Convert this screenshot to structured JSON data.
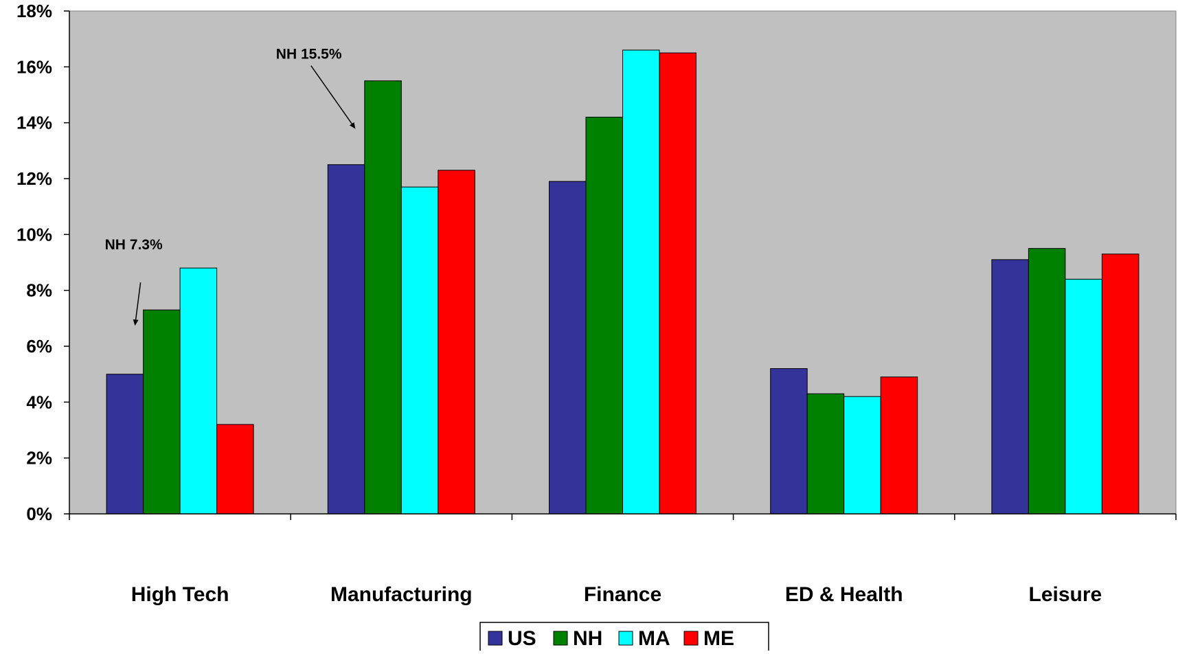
{
  "chart_data": {
    "type": "bar",
    "title": "",
    "xlabel": "",
    "ylabel": "",
    "ylim": [
      0,
      18
    ],
    "ytick_step": 2,
    "ytick_suffix": "%",
    "grid": false,
    "plot_background": "#C0C0C0",
    "legend_placement": "bottom-center",
    "categories": [
      "High Tech",
      "Manufacturing",
      "Finance",
      "ED & Health",
      "Leisure"
    ],
    "series": [
      {
        "name": "US",
        "color": "#333399",
        "values": [
          5.0,
          12.5,
          11.9,
          5.2,
          9.1
        ]
      },
      {
        "name": "NH",
        "color": "#008000",
        "values": [
          7.3,
          15.5,
          14.2,
          4.3,
          9.5
        ]
      },
      {
        "name": "MA",
        "color": "#00FFFF",
        "values": [
          8.8,
          11.7,
          16.6,
          4.2,
          8.4
        ]
      },
      {
        "name": "ME",
        "color": "#FF0000",
        "values": [
          3.2,
          12.3,
          16.5,
          4.9,
          9.3
        ]
      }
    ],
    "annotations": [
      {
        "text": "NH 7.3%",
        "category": "High Tech",
        "series": "NH"
      },
      {
        "text": "NH 15.5%",
        "category": "Manufacturing",
        "series": "NH"
      }
    ]
  }
}
